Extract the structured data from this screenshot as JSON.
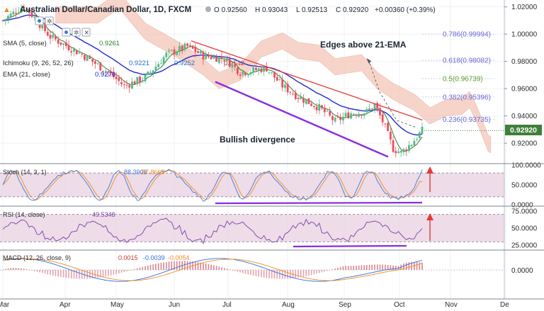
{
  "header": {
    "symbol": "Australian Dollar/Canadian Dollar, 1D, FXCM",
    "ohlc": {
      "O": "0.92560",
      "H": "0.93043",
      "L": "0.92513",
      "C": "0.92920"
    },
    "change": "+0.00360 (+0.39%)"
  },
  "indicators": {
    "ma_label": "SMA (5, close)",
    "ma_value": "0.9261",
    "ichimoku_label": "Ichimoku (9, 26, 52, 26)",
    "ichimoku_values": [
      "0.9221",
      "0.9252",
      "0.9542"
    ],
    "ema_label": "EMA (21, close)",
    "ema_value": "0.9276"
  },
  "annotations": {
    "bullish": "Bullish divergence",
    "edges": "Edges above 21-EMA"
  },
  "price_badge": "0.92920",
  "colors": {
    "up": "#53b987",
    "down": "#eb4d5c",
    "ema": "#1f2ad1",
    "sma": "#2e7d32",
    "trend_red": "#e53935",
    "trend_purple": "#8a2be2",
    "fib": "#6b6bd6",
    "cloud_red": "#f5c6b8",
    "cloud_green": "#cfe8c9",
    "badge": "#3f7f3a",
    "stoch_k": "#3d7ad6",
    "stoch_d": "#f08a24",
    "rsi": "#7b3fa7",
    "macd": "#2f6fd6",
    "signal": "#f08a24",
    "pane_fill": "#ead3e2"
  },
  "chart_data": {
    "type": "candlestick",
    "title": "Australian Dollar/Canadian Dollar, 1D, FXCM",
    "x_ticks": [
      "Mar",
      "Apr",
      "May",
      "Jun",
      "Jul",
      "Aug",
      "Sep",
      "Oct",
      "Nov",
      "De"
    ],
    "y_ticks": [
      "1.02000",
      "1.00000",
      "0.98000",
      "0.96000",
      "0.94000",
      "0.92000"
    ],
    "ylim": [
      0.905,
      1.025
    ],
    "fib_levels": [
      {
        "label": "0.786(0.99994)",
        "value": 0.99994
      },
      {
        "label": "0.618(0.98082)",
        "value": 0.98082
      },
      {
        "label": "0.5(0.96739)",
        "value": 0.96739
      },
      {
        "label": "0.382(0.95396)",
        "value": 0.95396
      },
      {
        "label": "0.236(0.93735)",
        "value": 0.93735
      }
    ],
    "last_price": 0.9292,
    "panes": {
      "stoch": {
        "label": "Stoch (14, 3, 1)",
        "k": "88.3908",
        "d": "57.8665",
        "ticks": [
          "100.0000",
          "50.0000",
          "0.0000"
        ],
        "ylim": [
          0,
          100
        ],
        "bands": [
          20,
          80
        ]
      },
      "rsi": {
        "label": "RSI (14, close)",
        "value": "49.5348",
        "ticks": [
          "75.0000",
          "50.0000",
          "25.0000"
        ],
        "ylim": [
          20,
          80
        ],
        "bands": [
          30,
          70
        ]
      },
      "macd": {
        "label": "MACD (12, 26, close, 9)",
        "values": [
          "0.0015",
          "-0.0039",
          "-0.0054"
        ],
        "ticks": [
          "0.0000"
        ]
      }
    }
  }
}
